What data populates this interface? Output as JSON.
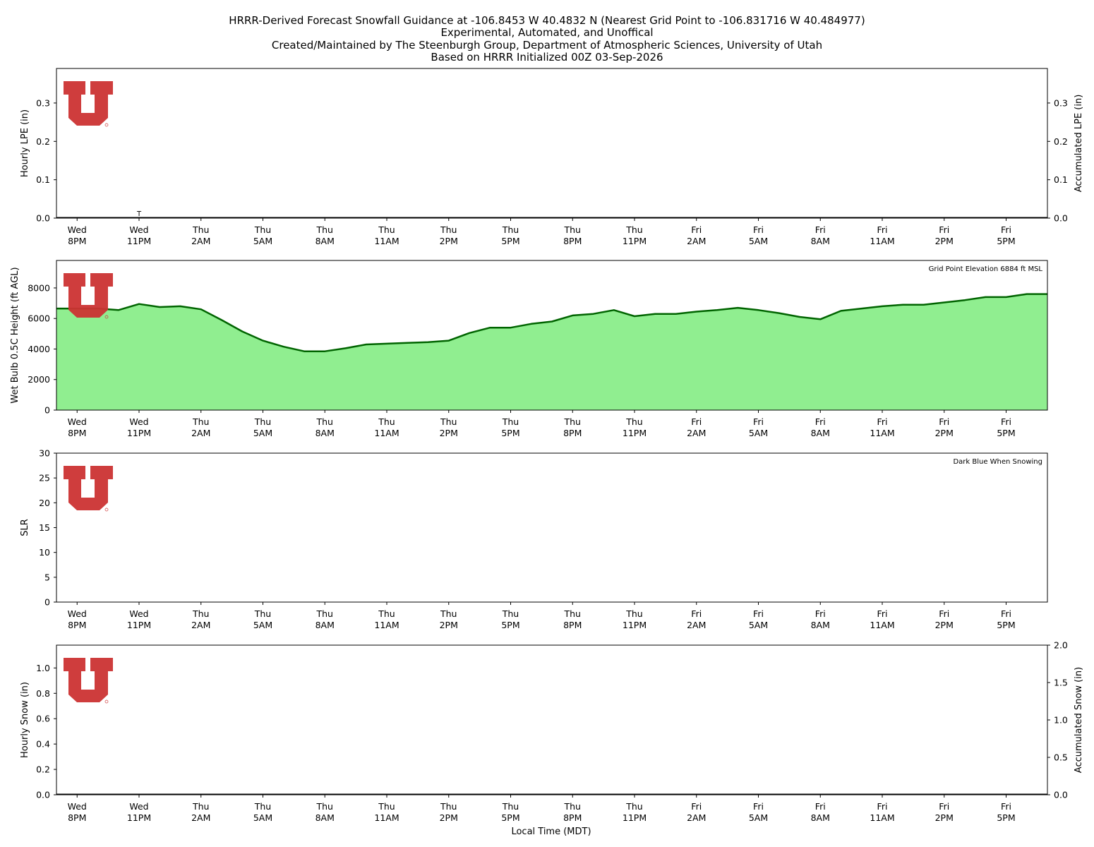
{
  "title_lines": [
    "HRRR-Derived Forecast Snowfall Guidance at -106.8453 W 40.4832 N (Nearest Grid Point to -106.831716 W 40.484977)",
    "Experimental, Automated, and Unoffical",
    "Created/Maintained by The Steenburgh Group, Department of Atmospheric Sciences, University of Utah",
    "Based on HRRR Initialized 00Z 03-Sep-2026"
  ],
  "x_axis_title": "Local Time (MDT)",
  "colors": {
    "logo_red": "#CC3333",
    "fill_green": "#90EE90",
    "line_dark_green": "#006400",
    "axes": "#000000"
  },
  "chart_data": [
    {
      "type": "bar",
      "panel": "lpe",
      "ylabel": "Hourly LPE (in)",
      "ylabel_right": "Accumulated LPE (in)",
      "ylim": [
        0,
        0.39
      ],
      "ylim_right": [
        0,
        0.39
      ],
      "yticks": [
        0.0,
        0.1,
        0.2,
        0.3
      ],
      "yticks_right": [
        0.0,
        0.1,
        0.2,
        0.3
      ],
      "ytick_labels": [
        "0.0",
        "0.1",
        "0.2",
        "0.3"
      ],
      "ytick_labels_right": [
        "0.0",
        "0.1",
        "0.2",
        "0.3"
      ],
      "annotations": [
        {
          "text": "T",
          "hour": 3
        }
      ],
      "hourly_values": "all 0.0",
      "accumulated_values": "all 0.0"
    },
    {
      "type": "area",
      "panel": "wetbulb",
      "ylabel": "Wet Bulb 0.5C Height (ft AGL)",
      "ylim": [
        0,
        9800
      ],
      "yticks": [
        0,
        2000,
        4000,
        6000,
        8000
      ],
      "ytick_labels": [
        "0",
        "2000",
        "4000",
        "6000",
        "8000"
      ],
      "note": "Grid Point Elevation 6884 ft MSL",
      "x": [
        -1,
        0,
        1,
        2,
        3,
        4,
        5,
        6,
        7,
        8,
        9,
        10,
        11,
        12,
        13,
        14,
        15,
        16,
        17,
        18,
        19,
        20,
        21,
        22,
        23,
        24,
        25,
        26,
        27,
        28,
        29,
        30,
        31,
        32,
        33,
        34,
        35,
        36,
        37,
        38,
        39,
        40,
        41,
        42,
        43,
        44,
        45,
        46,
        47
      ],
      "values": [
        6650,
        6650,
        6650,
        6550,
        6950,
        6750,
        6800,
        6600,
        5900,
        5150,
        4550,
        4150,
        3850,
        3850,
        4050,
        4300,
        4350,
        4400,
        4450,
        4550,
        5050,
        5400,
        5400,
        5650,
        5800,
        6200,
        6300,
        6550,
        6150,
        6300,
        6300,
        6450,
        6550,
        6700,
        6550,
        6350,
        6100,
        5950,
        6500,
        6650,
        6800,
        6900,
        6900,
        7050,
        7200,
        7400,
        7400,
        7600,
        7600
      ]
    },
    {
      "type": "bar",
      "panel": "slr",
      "ylabel": "SLR",
      "ylim": [
        0,
        30
      ],
      "yticks": [
        0,
        5,
        10,
        15,
        20,
        25,
        30
      ],
      "ytick_labels": [
        "0",
        "5",
        "10",
        "15",
        "20",
        "25",
        "30"
      ],
      "note": "Dark Blue When Snowing",
      "values": "none"
    },
    {
      "type": "bar",
      "panel": "snow",
      "ylabel": "Hourly Snow (in)",
      "ylabel_right": "Accumulated Snow (in)",
      "ylim": [
        0,
        1.18
      ],
      "ylim_right": [
        0,
        2.0
      ],
      "yticks": [
        0.0,
        0.2,
        0.4,
        0.6,
        0.8,
        1.0
      ],
      "yticks_right": [
        0.0,
        0.5,
        1.0,
        1.5,
        2.0
      ],
      "ytick_labels": [
        "0.0",
        "0.2",
        "0.4",
        "0.6",
        "0.8",
        "1.0"
      ],
      "ytick_labels_right": [
        "0.0",
        "0.5",
        "1.0",
        "1.5",
        "2.0"
      ],
      "hourly_values": "all 0.0",
      "accumulated_values": "all 0.0"
    }
  ],
  "x_ticks": [
    {
      "hour": 0,
      "day": "Wed",
      "time": "8PM"
    },
    {
      "hour": 3,
      "day": "Wed",
      "time": "11PM"
    },
    {
      "hour": 6,
      "day": "Thu",
      "time": "2AM"
    },
    {
      "hour": 9,
      "day": "Thu",
      "time": "5AM"
    },
    {
      "hour": 12,
      "day": "Thu",
      "time": "8AM"
    },
    {
      "hour": 15,
      "day": "Thu",
      "time": "11AM"
    },
    {
      "hour": 18,
      "day": "Thu",
      "time": "2PM"
    },
    {
      "hour": 21,
      "day": "Thu",
      "time": "5PM"
    },
    {
      "hour": 24,
      "day": "Thu",
      "time": "8PM"
    },
    {
      "hour": 27,
      "day": "Thu",
      "time": "11PM"
    },
    {
      "hour": 30,
      "day": "Fri",
      "time": "2AM"
    },
    {
      "hour": 33,
      "day": "Fri",
      "time": "5AM"
    },
    {
      "hour": 36,
      "day": "Fri",
      "time": "8AM"
    },
    {
      "hour": 39,
      "day": "Fri",
      "time": "11AM"
    },
    {
      "hour": 42,
      "day": "Fri",
      "time": "2PM"
    },
    {
      "hour": 45,
      "day": "Fri",
      "time": "5PM"
    }
  ],
  "x_range_hours": [
    -1,
    47
  ]
}
